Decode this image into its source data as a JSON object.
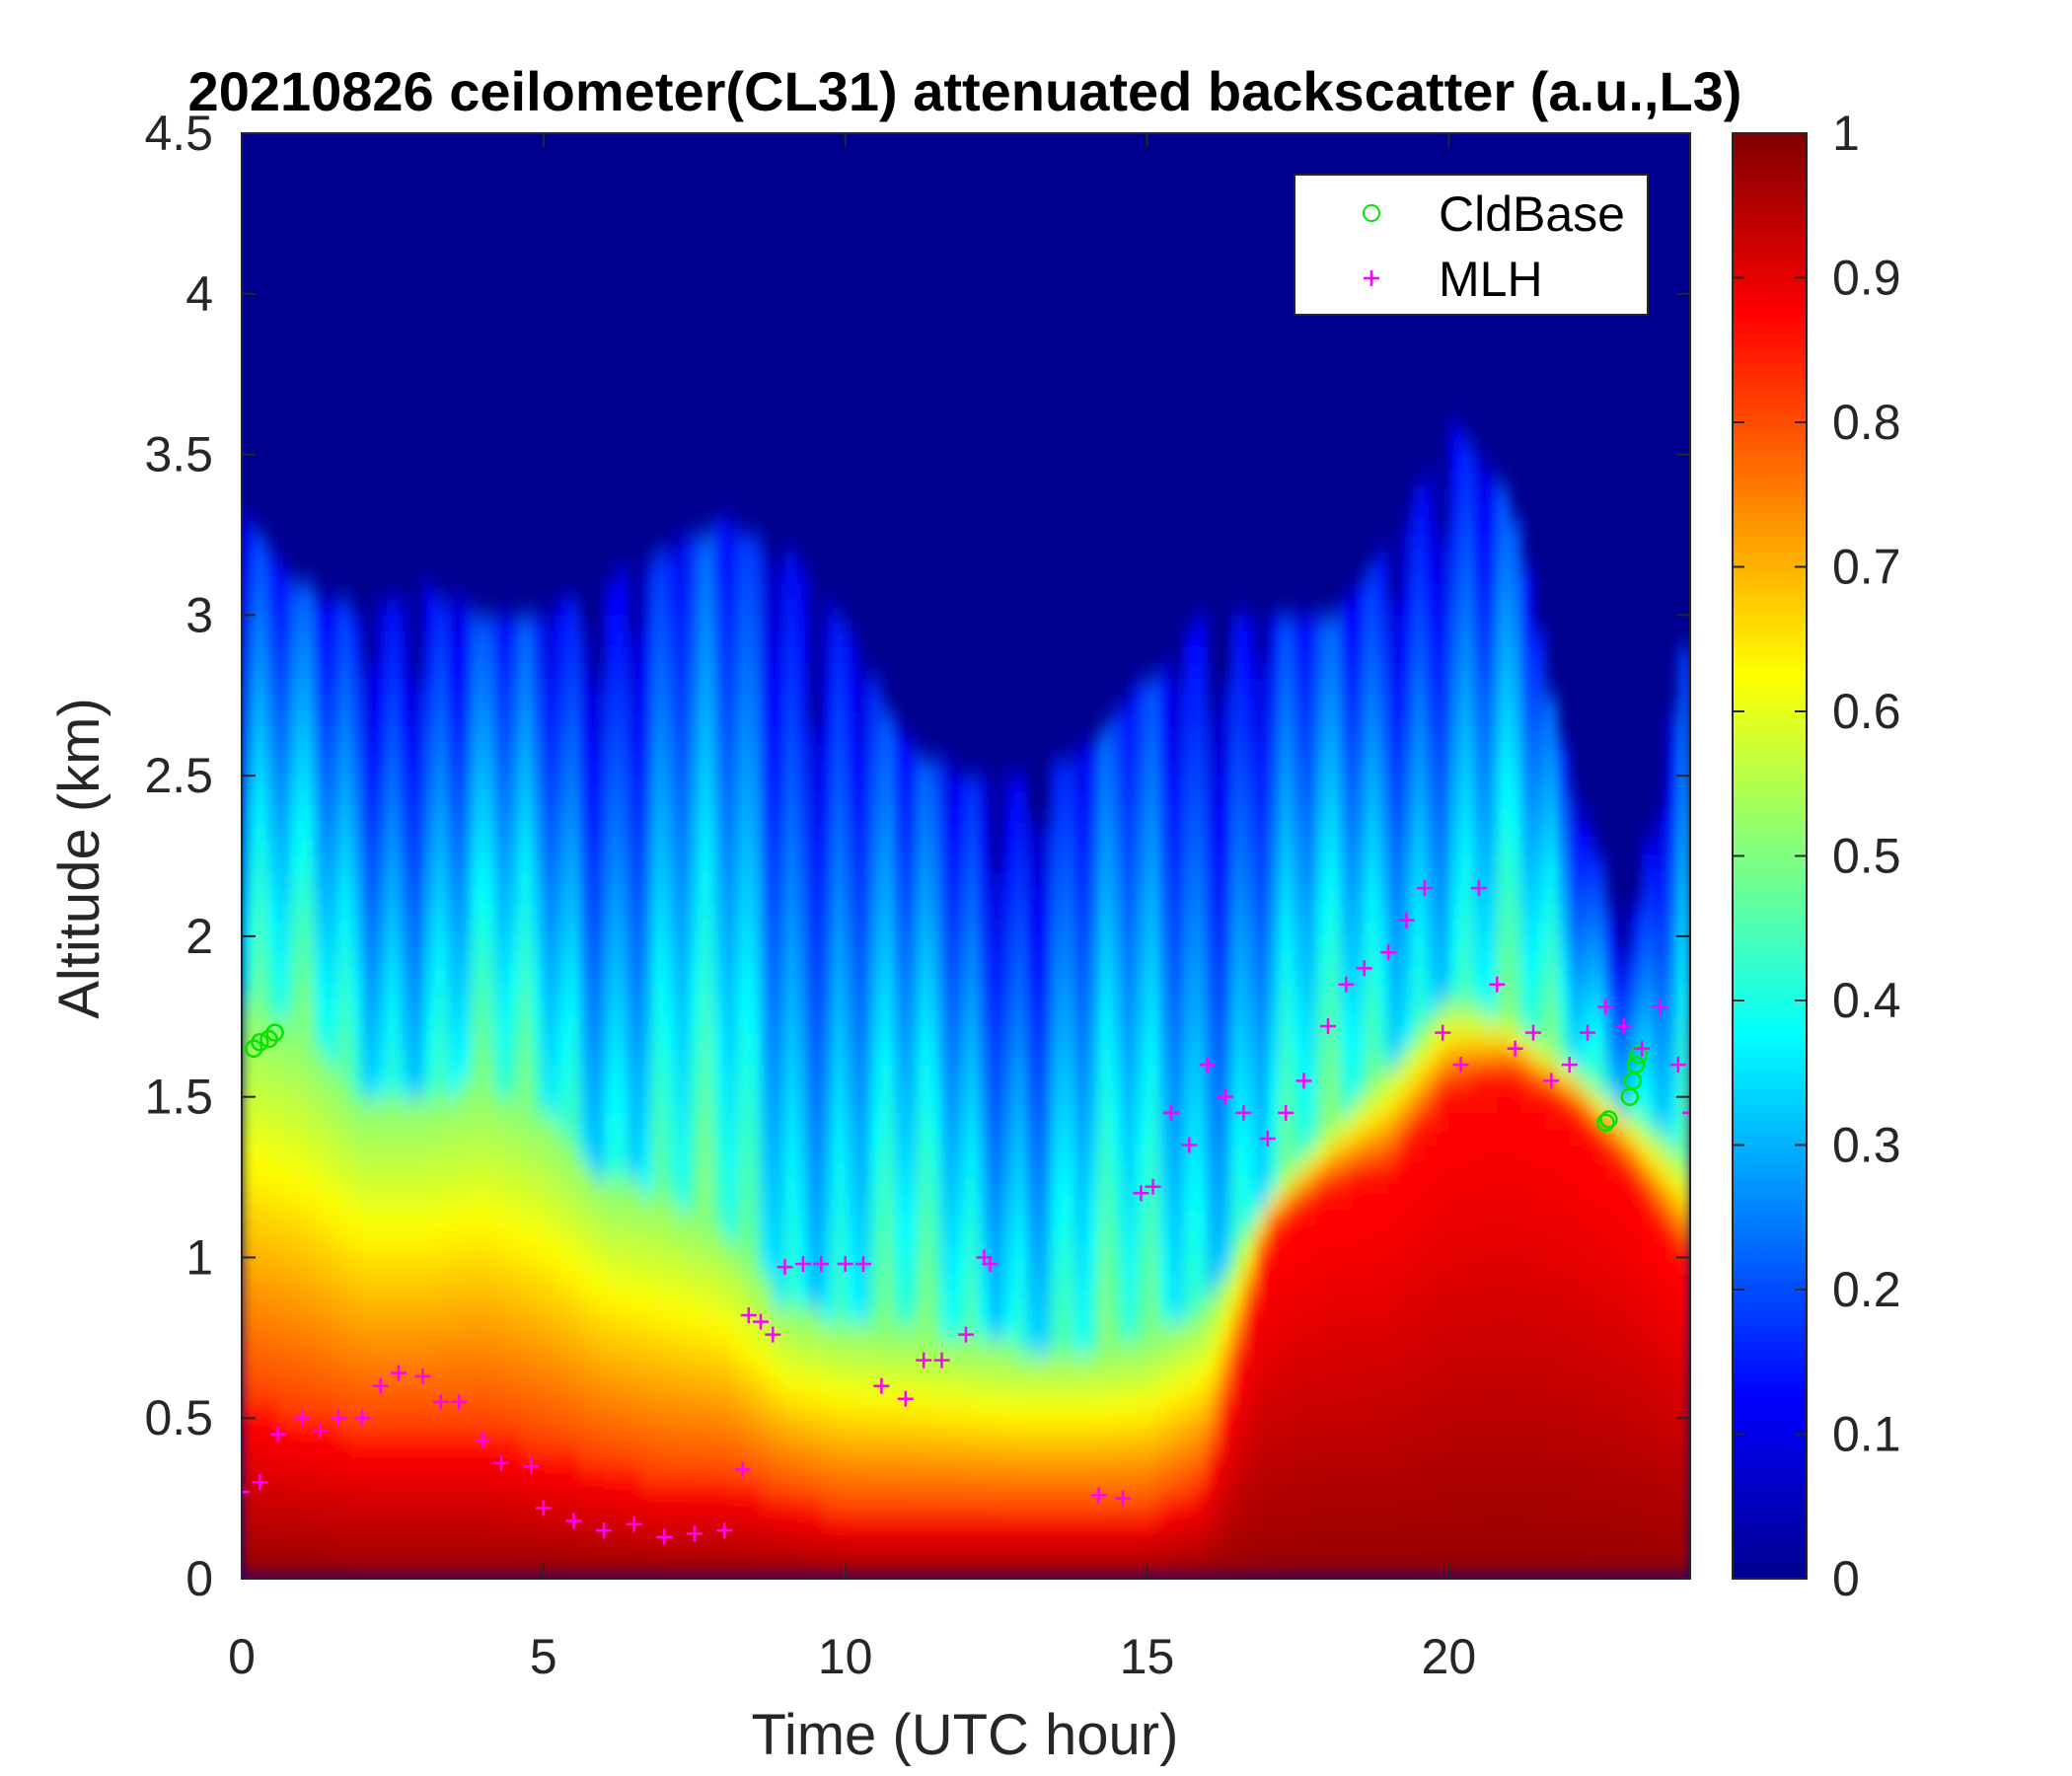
{
  "chart_data": {
    "type": "heatmap",
    "title": "20210826 ceilometer(CL31) attenuated backscatter (a.u.,L3)",
    "xlabel": "Time (UTC hour)",
    "ylabel": "Altitude (km)",
    "xlim": [
      0,
      24
    ],
    "ylim": [
      0,
      4.5
    ],
    "xticks": [
      0,
      5,
      10,
      15,
      20
    ],
    "xtick_labels": [
      "0",
      "5",
      "10",
      "15",
      "20"
    ],
    "yticks": [
      0,
      0.5,
      1,
      1.5,
      2,
      2.5,
      3,
      3.5,
      4,
      4.5
    ],
    "ytick_labels": [
      "0",
      "0.5",
      "1",
      "1.5",
      "2",
      "2.5",
      "3",
      "3.5",
      "4",
      "4.5"
    ],
    "colorbar": {
      "min": 0,
      "max": 1,
      "ticks": [
        0,
        0.1,
        0.2,
        0.3,
        0.4,
        0.5,
        0.6,
        0.7,
        0.8,
        0.9,
        1
      ],
      "tick_labels": [
        "0",
        "0.1",
        "0.2",
        "0.3",
        "0.4",
        "0.5",
        "0.6",
        "0.7",
        "0.8",
        "0.9",
        "1"
      ],
      "colormap": "jet"
    },
    "field_profile": {
      "description_hours": [
        0,
        1,
        2,
        3,
        4,
        5,
        6,
        7,
        8,
        9,
        10,
        11,
        12,
        13,
        14,
        15,
        16,
        17,
        18,
        19,
        20,
        21,
        22,
        23,
        24
      ],
      "strong_top_km": [
        0.55,
        0.5,
        0.45,
        0.45,
        0.45,
        0.4,
        0.35,
        0.3,
        0.3,
        0.25,
        0.2,
        0.2,
        0.2,
        0.2,
        0.2,
        0.2,
        0.3,
        1.1,
        1.25,
        1.3,
        1.55,
        1.6,
        1.5,
        1.3,
        1.0
      ],
      "aerosol_top_km": [
        1.8,
        1.7,
        1.5,
        1.5,
        1.55,
        1.45,
        1.25,
        1.2,
        1.1,
        0.85,
        0.8,
        0.78,
        0.75,
        0.72,
        0.72,
        0.75,
        0.85,
        1.2,
        1.4,
        1.6,
        1.8,
        1.75,
        1.6,
        1.45,
        1.3
      ],
      "haze_top_km": [
        3.3,
        3.1,
        3.0,
        3.1,
        3.0,
        3.0,
        3.1,
        3.2,
        3.3,
        3.2,
        3.0,
        2.6,
        2.5,
        2.5,
        2.6,
        2.8,
        3.0,
        3.0,
        3.0,
        3.2,
        3.6,
        3.4,
        2.5,
        2.0,
        3.0
      ]
    },
    "series": [
      {
        "name": "CldBase",
        "marker": "circle",
        "color": "#00e600",
        "x": [
          0.2,
          0.3,
          0.45,
          0.55,
          22.6,
          22.65,
          23.0,
          23.05,
          23.1,
          23.15
        ],
        "y": [
          1.65,
          1.67,
          1.68,
          1.7,
          1.42,
          1.43,
          1.5,
          1.55,
          1.6,
          1.63
        ]
      },
      {
        "name": "MLH",
        "marker": "plus",
        "color": "#ff00ff",
        "x": [
          0,
          0.3,
          0.6,
          1.0,
          1.3,
          1.6,
          2.0,
          2.3,
          2.6,
          3.0,
          3.3,
          3.6,
          4.0,
          4.3,
          4.8,
          5.0,
          5.5,
          6.0,
          6.5,
          7.0,
          7.5,
          8.0,
          8.3,
          8.4,
          8.6,
          8.8,
          9.0,
          9.3,
          9.6,
          10.0,
          10.3,
          10.6,
          11.0,
          11.3,
          11.6,
          12.0,
          12.3,
          12.4,
          14.2,
          14.6,
          14.9,
          15.1,
          15.4,
          15.7,
          16.0,
          16.3,
          16.6,
          17.0,
          17.3,
          17.6,
          18.0,
          18.3,
          18.6,
          19.0,
          19.3,
          19.6,
          19.9,
          20.2,
          20.5,
          20.8,
          21.1,
          21.4,
          21.7,
          22.0,
          22.3,
          22.6,
          22.9,
          23.2,
          23.5,
          23.8,
          24.0
        ],
        "y": [
          0.27,
          0.3,
          0.45,
          0.5,
          0.46,
          0.5,
          0.5,
          0.6,
          0.64,
          0.63,
          0.55,
          0.55,
          0.43,
          0.36,
          0.35,
          0.22,
          0.18,
          0.15,
          0.17,
          0.13,
          0.14,
          0.15,
          0.34,
          0.82,
          0.8,
          0.76,
          0.97,
          0.98,
          0.98,
          0.98,
          0.98,
          0.6,
          0.56,
          0.68,
          0.68,
          0.76,
          1.0,
          0.98,
          0.26,
          0.25,
          1.2,
          1.22,
          1.45,
          1.35,
          1.6,
          1.5,
          1.45,
          1.37,
          1.45,
          1.55,
          1.72,
          1.85,
          1.9,
          1.95,
          2.05,
          2.15,
          1.7,
          1.6,
          2.15,
          1.85,
          1.65,
          1.7,
          1.55,
          1.6,
          1.7,
          1.78,
          1.72,
          1.65,
          1.78,
          1.6,
          1.45
        ]
      }
    ],
    "legend": {
      "placement": "top-right",
      "entries": [
        "CldBase",
        "MLH"
      ]
    }
  }
}
